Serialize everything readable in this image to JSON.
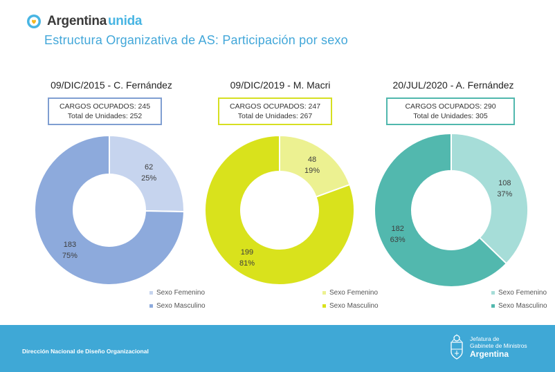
{
  "brand": {
    "name": "Argentina",
    "accent": "unida",
    "logo": "heart-circle-icon"
  },
  "page": {
    "title": "Estructura Organizativa de AS: Participación por sexo"
  },
  "chart_data": [
    {
      "type": "pie",
      "title": "09/DIC/2015 - C. Fernández",
      "info": {
        "line1": "CARGOS OCUPADOS: 245",
        "line2": "Total de Unidades: 252"
      },
      "border_color": "#7f9ed1",
      "categories": [
        "Sexo Femenino",
        "Sexo Masculino"
      ],
      "values": [
        62,
        183
      ],
      "percent_labels": [
        "25%",
        "75%"
      ],
      "colors": [
        "#c6d4ee",
        "#8daadc"
      ]
    },
    {
      "type": "pie",
      "title": "09/DIC/2019 - M. Macri",
      "info": {
        "line1": "CARGOS OCUPADOS: 247",
        "line2": "Total de Unidades: 267"
      },
      "border_color": "#d6df21",
      "categories": [
        "Sexo Femenino",
        "Sexo Masculino"
      ],
      "values": [
        48,
        199
      ],
      "percent_labels": [
        "19%",
        "81%"
      ],
      "colors": [
        "#ecf191",
        "#d9e21c"
      ]
    },
    {
      "type": "pie",
      "title": "20/JUL/2020 - A. Fernández",
      "info": {
        "line1": "CARGOS OCUPADOS: 290",
        "line2": "Total de Unidades: 305"
      },
      "border_color": "#4fb7ad",
      "categories": [
        "Sexo Femenino",
        "Sexo Masculino"
      ],
      "values": [
        108,
        182
      ],
      "percent_labels": [
        "37%",
        "63%"
      ],
      "colors": [
        "#a6ddd8",
        "#52b8ae"
      ]
    }
  ],
  "footer": {
    "left_text": "Dirección Nacional de Diseño Organizacional",
    "org_line1": "Jefatura de",
    "org_line2": "Gabinete de Ministros",
    "org_country": "Argentina",
    "emblem": "national-shield-icon"
  },
  "colors": {
    "brand_accent": "#48b5e3",
    "title": "#42a7d9",
    "footer_bg": "#3fa8d6"
  }
}
